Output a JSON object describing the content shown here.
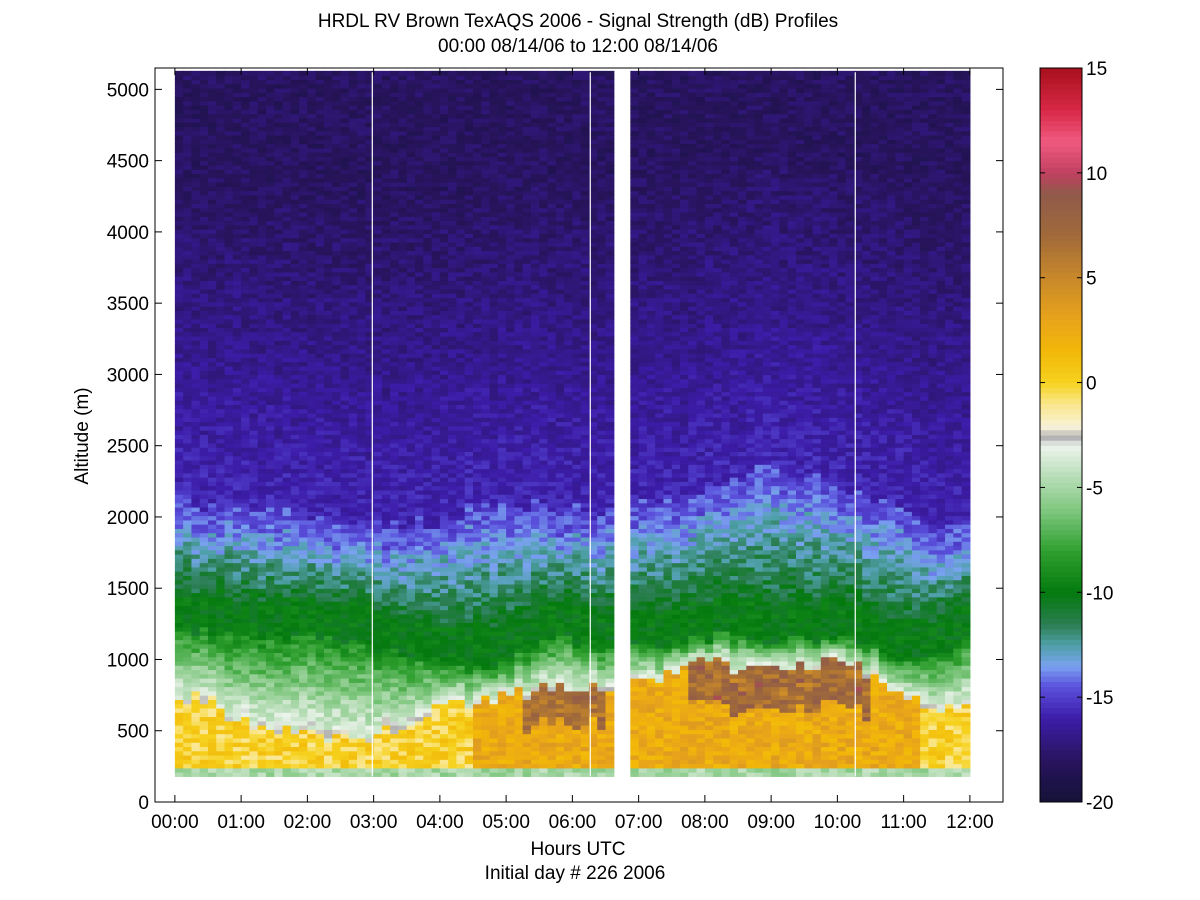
{
  "chart_data": {
    "type": "heatmap",
    "title": "HRDL RV Brown TexAQS 2006 - Signal Strength (dB) Profiles",
    "subtitle": "00:00 08/14/06 to 12:00 08/14/06",
    "xlabel": "Hours UTC",
    "xlabel2": "Initial day # 226  2006",
    "ylabel": "Altitude (m)",
    "x_tick_labels": [
      "00:00",
      "01:00",
      "02:00",
      "03:00",
      "04:00",
      "05:00",
      "06:00",
      "07:00",
      "08:00",
      "09:00",
      "10:00",
      "11:00",
      "12:00"
    ],
    "y_tick_labels": [
      "0",
      "500",
      "1000",
      "1500",
      "2000",
      "2500",
      "3000",
      "3500",
      "4000",
      "4500",
      "5000"
    ],
    "xlim_hours": [
      -0.3,
      12.5
    ],
    "ylim": [
      0,
      5150
    ],
    "data_altitude_range": [
      180,
      5120
    ],
    "data_time_range_hours": [
      0.0,
      12.0
    ],
    "gaps_hours": [
      [
        6.65,
        6.85
      ]
    ],
    "thin_gaps_hours": [
      2.98,
      6.27,
      10.27
    ],
    "colorbar": {
      "range": [
        -20,
        15
      ],
      "tick_labels": [
        "15",
        "10",
        "5",
        "0",
        "-5",
        "-10",
        "-15",
        "-20"
      ],
      "tick_values": [
        15,
        10,
        5,
        0,
        -5,
        -10,
        -15,
        -20
      ],
      "colors": [
        {
          "v": -20,
          "c": "#141238"
        },
        {
          "v": -18,
          "c": "#28145e"
        },
        {
          "v": -16,
          "c": "#3c1ca8"
        },
        {
          "v": -14.5,
          "c": "#5a50dc"
        },
        {
          "v": -13.5,
          "c": "#7aa2f0"
        },
        {
          "v": -12.5,
          "c": "#4ea0a8"
        },
        {
          "v": -11.5,
          "c": "#2a7d50"
        },
        {
          "v": -10,
          "c": "#047a0e"
        },
        {
          "v": -8,
          "c": "#30a030"
        },
        {
          "v": -6,
          "c": "#82c882"
        },
        {
          "v": -4,
          "c": "#c8e4c8"
        },
        {
          "v": -3,
          "c": "#ecf4ec"
        },
        {
          "v": -2.6,
          "c": "#b0b0b0"
        },
        {
          "v": -2.1,
          "c": "#f8f2d8"
        },
        {
          "v": -1,
          "c": "#fae68a"
        },
        {
          "v": 0,
          "c": "#f6d21e"
        },
        {
          "v": 1.5,
          "c": "#f2b808"
        },
        {
          "v": 3,
          "c": "#e8a41a"
        },
        {
          "v": 5,
          "c": "#c8882a"
        },
        {
          "v": 7,
          "c": "#a06a3a"
        },
        {
          "v": 9,
          "c": "#905a4a"
        },
        {
          "v": 10,
          "c": "#c04060"
        },
        {
          "v": 11.5,
          "c": "#f05a80"
        },
        {
          "v": 13,
          "c": "#d82846"
        },
        {
          "v": 15,
          "c": "#a8101c"
        }
      ]
    },
    "boundary_layer_profile": {
      "time_hours": [
        0.0,
        0.5,
        1.0,
        1.5,
        2.0,
        2.5,
        3.0,
        3.5,
        4.0,
        4.5,
        5.0,
        5.5,
        6.0,
        6.5,
        7.0,
        7.5,
        8.0,
        8.5,
        9.0,
        9.5,
        10.0,
        10.5,
        11.0,
        11.5,
        12.0
      ],
      "top_m": [
        2000,
        1900,
        1950,
        1900,
        1850,
        1800,
        1780,
        1800,
        1830,
        1900,
        1950,
        1950,
        1900,
        1850,
        1950,
        2000,
        2050,
        2150,
        2200,
        2150,
        2050,
        1950,
        1900,
        1700,
        1800
      ],
      "green_low_m": [
        1250,
        1200,
        1200,
        1150,
        1150,
        1150,
        1100,
        1050,
        1000,
        950,
        1000,
        1100,
        1150,
        1100,
        1100,
        1100,
        1150,
        1200,
        1150,
        1150,
        1150,
        1100,
        1000,
        1000,
        1200
      ],
      "yellow_top_m": [
        700,
        750,
        550,
        500,
        480,
        450,
        480,
        550,
        650,
        700,
        750,
        800,
        820,
        800,
        850,
        900,
        1000,
        950,
        950,
        950,
        1000,
        900,
        750,
        650,
        650
      ]
    }
  }
}
